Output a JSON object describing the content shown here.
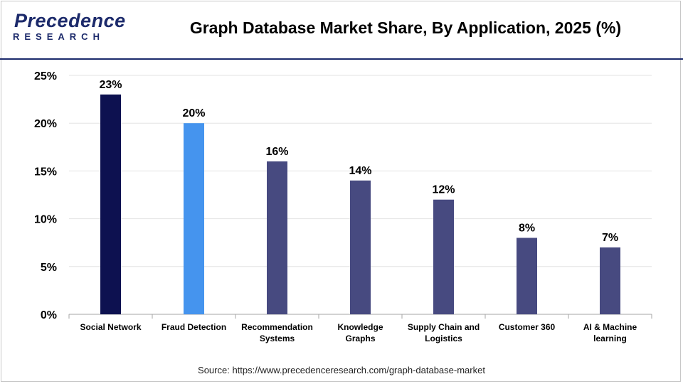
{
  "header": {
    "logo_main": "Precedence",
    "logo_sub": "RESEARCH",
    "title": "Graph Database Market Share, By Application, 2025 (%)"
  },
  "source": "Source: https://www.precedenceresearch.com/graph-database-market",
  "chart_data": {
    "type": "bar",
    "title": "Graph Database Market Share, By Application, 2025 (%)",
    "xlabel": "",
    "ylabel": "",
    "categories": [
      [
        "Social Network"
      ],
      [
        "Fraud Detection"
      ],
      [
        "Recommendation",
        "Systems"
      ],
      [
        "Knowledge",
        "Graphs"
      ],
      [
        "Supply Chain and",
        "Logistics"
      ],
      [
        "Customer 360"
      ],
      [
        "AI & Machine",
        "learning"
      ]
    ],
    "values": [
      23,
      20,
      16,
      14,
      12,
      8,
      7
    ],
    "value_labels": [
      "23%",
      "20%",
      "16%",
      "14%",
      "12%",
      "8%",
      "7%"
    ],
    "colors": [
      "#0d1150",
      "#4594ee",
      "#474a80",
      "#474a80",
      "#474a80",
      "#474a80",
      "#474a80"
    ],
    "ylim": [
      0,
      25
    ],
    "yticks": [
      0,
      5,
      10,
      15,
      20,
      25
    ],
    "ytick_labels": [
      "0%",
      "5%",
      "10%",
      "15%",
      "20%",
      "25%"
    ],
    "grid": true,
    "legend": "none"
  }
}
